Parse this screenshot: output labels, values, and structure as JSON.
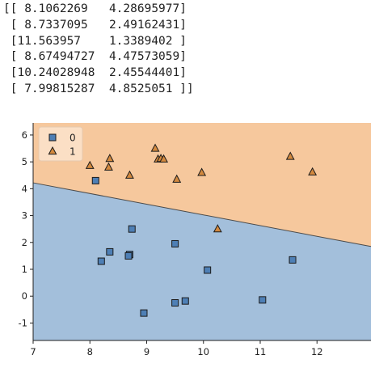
{
  "output_lines": [
    "[[ 8.1062269   4.28695977]",
    " [ 8.7337095   2.49162431]",
    " [11.563957    1.3389402 ]",
    " [ 8.67494727  4.47573059]",
    " [10.24028948  2.45544401]",
    " [ 7.99815287  4.8525051 ]]"
  ],
  "chart_data": {
    "type": "scatter",
    "title": "",
    "xlabel": "",
    "ylabel": "",
    "xlim": [
      7,
      12.95
    ],
    "ylim": [
      -1.65,
      6.45
    ],
    "xticks": [
      7,
      8,
      9,
      10,
      11,
      12
    ],
    "yticks": [
      -1,
      0,
      1,
      2,
      3,
      4,
      5,
      6
    ],
    "grid": false,
    "legend_position": "top-left",
    "decision_boundary": {
      "x": [
        7,
        12.95
      ],
      "y": [
        4.22,
        1.85
      ]
    },
    "regions": [
      {
        "class": "0",
        "side": "below",
        "color": "#a3bfdb"
      },
      {
        "class": "1",
        "side": "above",
        "color": "#f6c89d"
      }
    ],
    "series": [
      {
        "name": "0",
        "marker": "square",
        "color": "#4e7fb5",
        "points": [
          [
            8.1,
            4.3
          ],
          [
            8.74,
            2.5
          ],
          [
            9.5,
            1.95
          ],
          [
            8.35,
            1.65
          ],
          [
            8.2,
            1.3
          ],
          [
            8.7,
            1.55
          ],
          [
            8.68,
            1.5
          ],
          [
            10.07,
            0.97
          ],
          [
            11.57,
            1.35
          ],
          [
            9.5,
            -0.25
          ],
          [
            9.68,
            -0.18
          ],
          [
            11.04,
            -0.14
          ],
          [
            8.95,
            -0.63
          ]
        ]
      },
      {
        "name": "1",
        "marker": "triangle",
        "color": "#d3893e",
        "points": [
          [
            8.0,
            4.86
          ],
          [
            8.35,
            5.12
          ],
          [
            8.33,
            4.8
          ],
          [
            8.7,
            4.5
          ],
          [
            9.15,
            5.5
          ],
          [
            9.2,
            5.1
          ],
          [
            9.25,
            5.12
          ],
          [
            9.3,
            5.1
          ],
          [
            9.53,
            4.35
          ],
          [
            9.97,
            4.6
          ],
          [
            10.25,
            2.5
          ],
          [
            11.53,
            5.2
          ],
          [
            11.92,
            4.62
          ]
        ]
      }
    ]
  }
}
